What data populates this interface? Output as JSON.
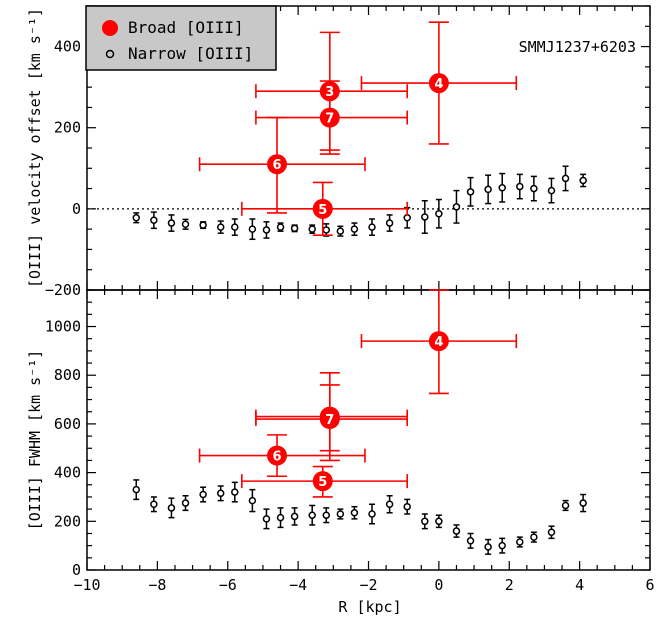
{
  "chart_data": [
    {
      "type": "scatter",
      "panel": "top",
      "ylabel": "[OIII] velocity offset [km s⁻¹]",
      "xlim": [
        -10,
        6
      ],
      "ylim": [
        -200,
        500
      ],
      "yticks": [
        -200,
        0,
        200,
        400
      ],
      "ytick_labels": [
        "−200",
        "0",
        "200",
        "400"
      ],
      "zero_line": "dotted",
      "annotation": "SMMJ1237+6203",
      "legend": {
        "position": "top-left",
        "entries": [
          {
            "label": "Broad [OIII]",
            "marker": "filled-circle",
            "color": "#ff0000"
          },
          {
            "label": "Narrow [OIII]",
            "marker": "open-circle",
            "color": "#000000"
          }
        ]
      },
      "series": [
        {
          "name": "Broad [OIII]",
          "color": "#ff0000",
          "points": [
            {
              "id": "3",
              "x": -3.1,
              "y": 290,
              "xlo": -5.2,
              "xhi": -0.9,
              "ylo": 145,
              "yhi": 435
            },
            {
              "id": "4",
              "x": 0.0,
              "y": 310,
              "xlo": -2.2,
              "xhi": 2.2,
              "ylo": 160,
              "yhi": 460
            },
            {
              "id": "7",
              "x": -3.1,
              "y": 225,
              "xlo": -5.2,
              "xhi": -0.9,
              "ylo": 135,
              "yhi": 315
            },
            {
              "id": "6",
              "x": -4.6,
              "y": 110,
              "xlo": -6.8,
              "xhi": -2.1,
              "ylo": -10,
              "yhi": 225
            },
            {
              "id": "5",
              "x": -3.3,
              "y": 0,
              "xlo": -5.6,
              "xhi": -0.9,
              "ylo": -65,
              "yhi": 65
            }
          ]
        },
        {
          "name": "Narrow [OIII]",
          "color": "#000000",
          "points": [
            {
              "x": -8.6,
              "y": -22,
              "err": 12
            },
            {
              "x": -8.1,
              "y": -28,
              "err": 20
            },
            {
              "x": -7.6,
              "y": -35,
              "err": 20
            },
            {
              "x": -7.2,
              "y": -38,
              "err": 12
            },
            {
              "x": -6.7,
              "y": -40,
              "err": 8
            },
            {
              "x": -6.2,
              "y": -45,
              "err": 15
            },
            {
              "x": -5.8,
              "y": -45,
              "err": 20
            },
            {
              "x": -5.3,
              "y": -50,
              "err": 25
            },
            {
              "x": -4.9,
              "y": -52,
              "err": 20
            },
            {
              "x": -4.5,
              "y": -45,
              "err": 10
            },
            {
              "x": -4.1,
              "y": -48,
              "err": 8
            },
            {
              "x": -3.6,
              "y": -50,
              "err": 10
            },
            {
              "x": -3.2,
              "y": -52,
              "err": 15
            },
            {
              "x": -2.8,
              "y": -55,
              "err": 12
            },
            {
              "x": -2.4,
              "y": -50,
              "err": 15
            },
            {
              "x": -1.9,
              "y": -45,
              "err": 20
            },
            {
              "x": -1.4,
              "y": -35,
              "err": 20
            },
            {
              "x": -0.9,
              "y": -22,
              "err": 25
            },
            {
              "x": -0.4,
              "y": -20,
              "err": 40
            },
            {
              "x": 0.0,
              "y": -12,
              "err": 35
            },
            {
              "x": 0.5,
              "y": 5,
              "err": 40
            },
            {
              "x": 0.9,
              "y": 42,
              "err": 35
            },
            {
              "x": 1.4,
              "y": 48,
              "err": 35
            },
            {
              "x": 1.8,
              "y": 52,
              "err": 35
            },
            {
              "x": 2.3,
              "y": 55,
              "err": 30
            },
            {
              "x": 2.7,
              "y": 50,
              "err": 30
            },
            {
              "x": 3.2,
              "y": 45,
              "err": 30
            },
            {
              "x": 3.6,
              "y": 75,
              "err": 30
            },
            {
              "x": 4.1,
              "y": 70,
              "err": 15
            }
          ]
        }
      ]
    },
    {
      "type": "scatter",
      "panel": "bottom",
      "xlabel": "R [kpc]",
      "ylabel": "[OIII] FWHM [km s⁻¹]",
      "xlim": [
        -10,
        6
      ],
      "ylim": [
        0,
        1150
      ],
      "xticks": [
        -10,
        -8,
        -6,
        -4,
        -2,
        0,
        2,
        4,
        6
      ],
      "xtick_labels": [
        "−10",
        "−8",
        "−6",
        "−4",
        "−2",
        "0",
        "2",
        "4",
        "6"
      ],
      "yticks": [
        0,
        200,
        400,
        600,
        800,
        1000
      ],
      "ytick_labels": [
        "0",
        "200",
        "400",
        "600",
        "800",
        "1000"
      ],
      "series": [
        {
          "name": "Broad [OIII]",
          "color": "#ff0000",
          "points": [
            {
              "id": "4",
              "x": 0.0,
              "y": 940,
              "xlo": -2.2,
              "xhi": 2.2,
              "ylo": 725,
              "yhi": 1150
            },
            {
              "id": "3",
              "x": -3.1,
              "y": 630,
              "xlo": -5.2,
              "xhi": -0.9,
              "ylo": 450,
              "yhi": 810
            },
            {
              "id": "7",
              "x": -3.1,
              "y": 620,
              "xlo": -5.2,
              "xhi": -0.9,
              "ylo": 490,
              "yhi": 760
            },
            {
              "id": "6",
              "x": -4.6,
              "y": 470,
              "xlo": -6.8,
              "xhi": -2.1,
              "ylo": 385,
              "yhi": 555
            },
            {
              "id": "5",
              "x": -3.3,
              "y": 365,
              "xlo": -5.6,
              "xhi": -0.9,
              "ylo": 300,
              "yhi": 425
            }
          ]
        },
        {
          "name": "Narrow [OIII]",
          "color": "#000000",
          "points": [
            {
              "x": -8.6,
              "y": 330,
              "err": 40
            },
            {
              "x": -8.1,
              "y": 270,
              "err": 30
            },
            {
              "x": -7.6,
              "y": 255,
              "err": 40
            },
            {
              "x": -7.2,
              "y": 275,
              "err": 30
            },
            {
              "x": -6.7,
              "y": 310,
              "err": 30
            },
            {
              "x": -6.2,
              "y": 315,
              "err": 30
            },
            {
              "x": -5.8,
              "y": 320,
              "err": 40
            },
            {
              "x": -5.3,
              "y": 285,
              "err": 45
            },
            {
              "x": -4.9,
              "y": 210,
              "err": 40
            },
            {
              "x": -4.5,
              "y": 215,
              "err": 40
            },
            {
              "x": -4.1,
              "y": 220,
              "err": 35
            },
            {
              "x": -3.6,
              "y": 225,
              "err": 40
            },
            {
              "x": -3.2,
              "y": 225,
              "err": 30
            },
            {
              "x": -2.8,
              "y": 230,
              "err": 20
            },
            {
              "x": -2.4,
              "y": 235,
              "err": 25
            },
            {
              "x": -1.9,
              "y": 230,
              "err": 40
            },
            {
              "x": -1.4,
              "y": 270,
              "err": 35
            },
            {
              "x": -0.9,
              "y": 260,
              "err": 30
            },
            {
              "x": -0.4,
              "y": 200,
              "err": 30
            },
            {
              "x": 0.0,
              "y": 200,
              "err": 25
            },
            {
              "x": 0.5,
              "y": 160,
              "err": 25
            },
            {
              "x": 0.9,
              "y": 120,
              "err": 30
            },
            {
              "x": 1.4,
              "y": 95,
              "err": 30
            },
            {
              "x": 1.8,
              "y": 100,
              "err": 30
            },
            {
              "x": 2.3,
              "y": 115,
              "err": 20
            },
            {
              "x": 2.7,
              "y": 135,
              "err": 20
            },
            {
              "x": 3.2,
              "y": 155,
              "err": 25
            },
            {
              "x": 3.6,
              "y": 265,
              "err": 20
            },
            {
              "x": 4.1,
              "y": 275,
              "err": 35
            }
          ]
        }
      ]
    }
  ]
}
